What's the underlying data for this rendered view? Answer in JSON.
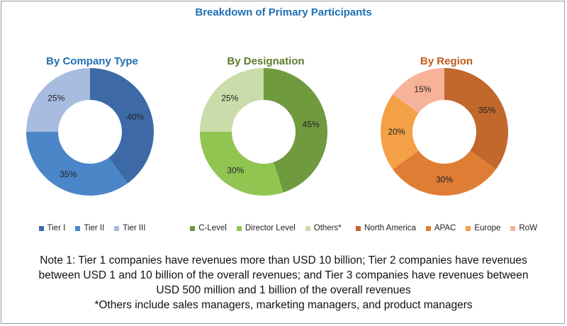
{
  "title": "Breakdown of Primary Participants",
  "chart_data": [
    {
      "type": "pie",
      "title": "By Company Type",
      "title_color": "#1f6fb2",
      "categories": [
        "Tier I",
        "Tier II",
        "Tier III"
      ],
      "values": [
        40,
        35,
        25
      ],
      "labels": [
        "40%",
        "35%",
        "25%"
      ],
      "colors": [
        "#3d6aa6",
        "#4b86c8",
        "#a7bcdf"
      ],
      "legend_position": "bottom"
    },
    {
      "type": "pie",
      "title": "By Designation",
      "title_color": "#5e7a2c",
      "categories": [
        "C-Level",
        "Director Level",
        "Others*"
      ],
      "values": [
        45,
        30,
        25
      ],
      "labels": [
        "45%",
        "30%",
        "25%"
      ],
      "colors": [
        "#6f9a3e",
        "#92c452",
        "#c9dcaa"
      ],
      "legend_position": "bottom"
    },
    {
      "type": "pie",
      "title": "By Region",
      "title_color": "#c25a1a",
      "categories": [
        "North America",
        "APAC",
        "Europe",
        "RoW"
      ],
      "values": [
        35,
        30,
        20,
        15
      ],
      "labels": [
        "35%",
        "30%",
        "20%",
        "15%"
      ],
      "colors": [
        "#c1682c",
        "#e07d34",
        "#f4a046",
        "#f7b29a"
      ],
      "legend_position": "bottom"
    }
  ],
  "notes": [
    "Note 1: Tier 1 companies have revenues more than USD 10 billion; Tier 2 companies have revenues",
    "between USD 1 and 10 billion of the overall revenues; and Tier 3 companies have revenues between",
    "USD 500 million and 1 billion of the overall revenues",
    "*Others include sales managers, marketing managers, and product managers"
  ]
}
